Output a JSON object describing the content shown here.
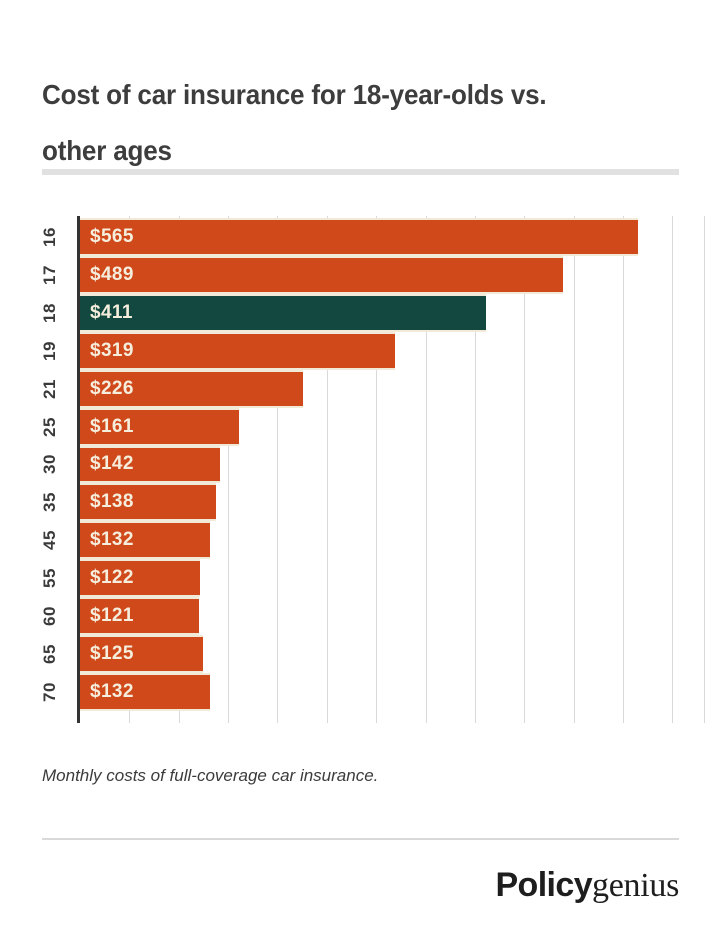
{
  "header": {
    "title_line1": "Cost of car insurance for 18-year-olds vs.",
    "title_line2": "other ages"
  },
  "chart_data": {
    "type": "bar",
    "orientation": "horizontal",
    "categories": [
      "16",
      "17",
      "18",
      "19",
      "21",
      "25",
      "30",
      "35",
      "45",
      "55",
      "60",
      "65",
      "70"
    ],
    "values": [
      565,
      489,
      411,
      319,
      226,
      161,
      142,
      138,
      132,
      122,
      121,
      125,
      132
    ],
    "value_labels": [
      "$565",
      "$489",
      "$411",
      "$319",
      "$226",
      "$161",
      "$142",
      "$138",
      "$132",
      "$122",
      "$121",
      "$125",
      "$132"
    ],
    "highlight_category": "18",
    "highlight_index": 2,
    "xlim": [
      0,
      632
    ],
    "grid_interval": 50,
    "grid_max": 600,
    "grid_on": true,
    "legend": "none",
    "bar_color": "#d0491b",
    "highlight_color": "#124840",
    "value_label_color": "#f6eedd",
    "axis_color": "#333333",
    "grid_color": "#d9d9d9"
  },
  "footer": {
    "caption": "Monthly costs of full-coverage car insurance.",
    "brand_bold": "Policy",
    "brand_serif": "genius"
  }
}
